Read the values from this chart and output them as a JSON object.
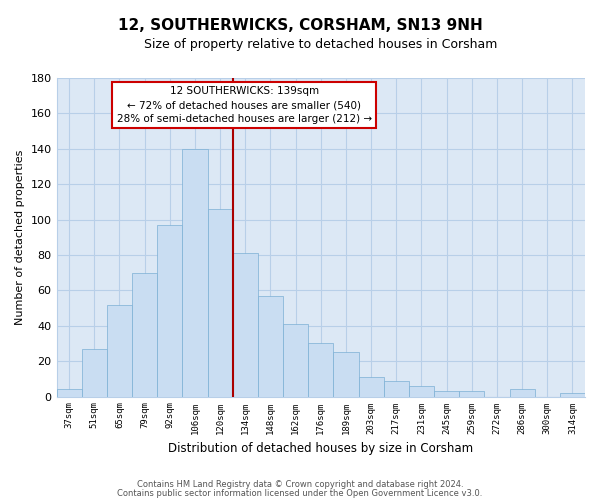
{
  "title": "12, SOUTHERWICKS, CORSHAM, SN13 9NH",
  "subtitle": "Size of property relative to detached houses in Corsham",
  "xlabel": "Distribution of detached houses by size in Corsham",
  "ylabel": "Number of detached properties",
  "categories": [
    "37sqm",
    "51sqm",
    "65sqm",
    "79sqm",
    "92sqm",
    "106sqm",
    "120sqm",
    "134sqm",
    "148sqm",
    "162sqm",
    "176sqm",
    "189sqm",
    "203sqm",
    "217sqm",
    "231sqm",
    "245sqm",
    "259sqm",
    "272sqm",
    "286sqm",
    "300sqm",
    "314sqm"
  ],
  "values": [
    4,
    27,
    52,
    70,
    97,
    140,
    106,
    81,
    57,
    41,
    30,
    25,
    11,
    9,
    6,
    3,
    3,
    0,
    4,
    0,
    2
  ],
  "bar_color": "#c9ddf2",
  "bar_edge_color": "#7bafd4",
  "marker_line_color": "#aa0000",
  "ylim": [
    0,
    180
  ],
  "yticks": [
    0,
    20,
    40,
    60,
    80,
    100,
    120,
    140,
    160,
    180
  ],
  "annotation_title": "12 SOUTHERWICKS: 139sqm",
  "annotation_line1": "← 72% of detached houses are smaller (540)",
  "annotation_line2": "28% of semi-detached houses are larger (212) →",
  "annotation_box_color": "#ffffff",
  "annotation_box_edge": "#cc0000",
  "footer_line1": "Contains HM Land Registry data © Crown copyright and database right 2024.",
  "footer_line2": "Contains public sector information licensed under the Open Government Licence v3.0.",
  "background_color": "#ffffff",
  "plot_bg_color": "#dce8f5",
  "grid_color": "#b8cfe8"
}
